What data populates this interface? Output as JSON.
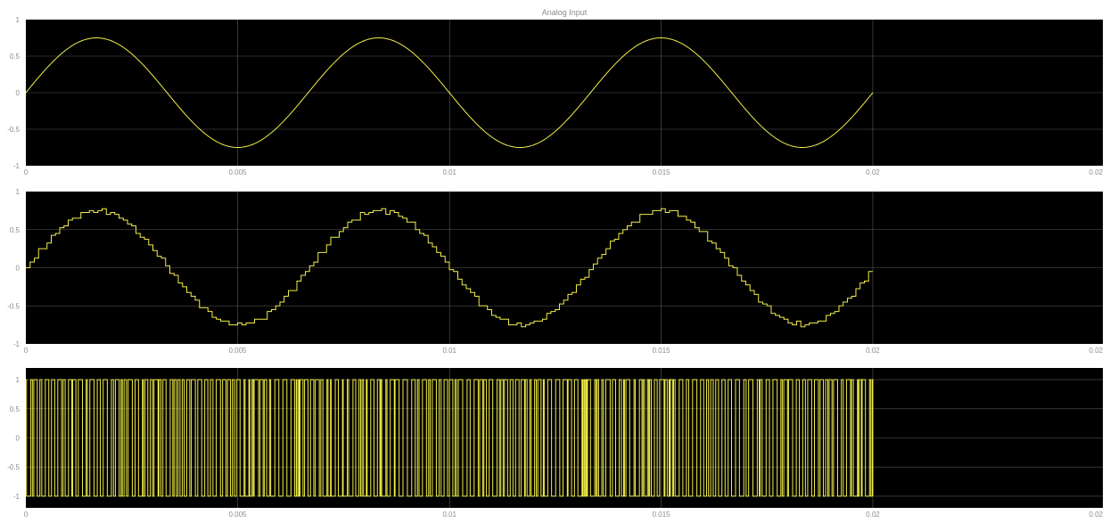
{
  "colors": {
    "plot_background": "#000000",
    "figure_background": "#ffffff",
    "trace": "#f2ee4a",
    "grid": "#5a5a5a",
    "tick_text": "#8c8c8c"
  },
  "chart_data": [
    {
      "type": "line",
      "title": "Analog Input",
      "xlim": [
        0,
        0.02
      ],
      "ylim": [
        -1,
        1
      ],
      "xticks": [
        "0",
        "0.005",
        "0.01",
        "0.015",
        "0.02",
        "0.02"
      ],
      "yticks": [
        "1",
        "0.5",
        "0",
        "-0.5",
        "-1"
      ],
      "grid": true,
      "signal": "sine",
      "amplitude": 0.75,
      "frequency_hz": 150,
      "t_end": 0.02,
      "series": [
        {
          "x_range": [
            0,
            0.02
          ],
          "function": "0.75*sin(2*pi*150*t)"
        }
      ]
    },
    {
      "type": "line",
      "title": "",
      "xlim": [
        0,
        0.02
      ],
      "ylim": [
        -1,
        1
      ],
      "xticks": [
        "0",
        "0.005",
        "0.01",
        "0.015",
        "0.02",
        "0.02"
      ],
      "yticks": [
        "1",
        "0.5",
        "0",
        "-0.5",
        "-1"
      ],
      "grid": true,
      "signal": "stairs",
      "amplitude": 0.75,
      "frequency_hz": 150,
      "t_end": 0.02,
      "step_s": 0.0001,
      "series": [
        {
          "x_range": [
            0,
            0.02
          ],
          "function": "zero-order hold of 0.75*sin(2*pi*150*t)"
        }
      ]
    },
    {
      "type": "line",
      "title": "",
      "xlim": [
        0,
        0.02
      ],
      "ylim": [
        -1.2,
        1.2
      ],
      "xticks": [
        "0",
        "0.005",
        "0.01",
        "0.015",
        "0.02",
        "0.02"
      ],
      "yticks": [
        "1",
        "0.5",
        "0",
        "-0.5",
        "-1"
      ],
      "grid": true,
      "signal": "pulses",
      "levels": [
        -1,
        1
      ],
      "t_end": 0.02,
      "series": [
        {
          "x_range": [
            0,
            0.02
          ],
          "function": "dense pulse train between -1 and 1"
        }
      ]
    }
  ]
}
